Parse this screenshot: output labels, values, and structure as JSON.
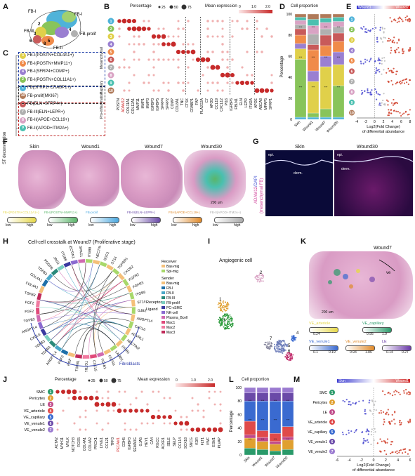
{
  "panels": {
    "A": "A",
    "B": "B",
    "C": "C",
    "D": "D",
    "E": "E",
    "F": "F",
    "G": "G",
    "H": "H",
    "I": "I",
    "J": "J",
    "K": "K",
    "L": "L",
    "M": "M"
  },
  "clusters": [
    "1",
    "2",
    "3",
    "4",
    "5",
    "6",
    "7",
    "8",
    "9",
    "10"
  ],
  "cluster_colors": [
    "#4fb3d9",
    "#88c45a",
    "#e0d04a",
    "#9a7fd1",
    "#f08b4a",
    "#c85a5a",
    "#b0b0b0",
    "#d9a3c4",
    "#4ac0b0",
    "#b07a5a"
  ],
  "panelA": {
    "labels": {
      "fb_i": "FB-I",
      "fb_ii": "FB-II",
      "fb_iii": "FB-III",
      "fb_prolif": "FB-prolif",
      "n2": "2",
      "n3": "3",
      "n4": "4",
      "n5": "5",
      "n6": "6",
      "n8": "8"
    }
  },
  "panelB": {
    "legend_percentage": "Percentage",
    "size_labels": [
      "25",
      "50",
      "75"
    ],
    "legend_mean": "Mean expression",
    "color_ticks": [
      "0",
      "1.0",
      "2.0"
    ],
    "genes": [
      "POSTN",
      "ADAM12",
      "COL11A1",
      "COL12A1",
      "MMP11",
      "MMP1",
      "MMP3",
      "IGFBP3",
      "IGFBP5",
      "SFRP4",
      "SFRP2",
      "COMP",
      "COL8A1",
      "TNC",
      "CTSK",
      "CRABP1",
      "FAP",
      "PLA2G2A",
      "C7",
      "APOD",
      "CCL19",
      "CXCL12",
      "PI16",
      "IGFBP6",
      "FBLN1",
      "ELN",
      "LEPR",
      "ITM2A",
      "APOE",
      "ABCA8",
      "MFAP5",
      "SFRP1"
    ],
    "red_gene_index": 1
  },
  "panelC": {
    "items": [
      {
        "num": "3",
        "label": "FB-I(POSTN+COL4A1+)"
      },
      {
        "num": "5",
        "label": "FB-I(POSTN+MMP11+)"
      },
      {
        "num": "4",
        "label": "FB-I(SFRP4+COMP+)"
      },
      {
        "num": "2",
        "label": "FB-I(POSTN+COL11A1+)"
      },
      {
        "num": "1",
        "label": "FB(SFRP1+CRABP1+)"
      },
      {
        "num": "10",
        "label": "FB-prolif(MKI67)"
      },
      {
        "num": "6",
        "label": "FB(ELN+SFRP4+)"
      },
      {
        "num": "7",
        "label": "FB-III(ELN+LEPR+)"
      },
      {
        "num": "8",
        "label": "FB-II(APOE+CCL19+)"
      },
      {
        "num": "9",
        "label": "FB-II(APOD+ITM2A+)"
      }
    ],
    "groups": [
      "Mesenchymal",
      "Papillary",
      "Pro-inflammation"
    ]
  },
  "panelD": {
    "title": "Cell proportion",
    "ylabel": "Percentage",
    "yticks": [
      "0",
      "20",
      "40",
      "60",
      "80",
      "100"
    ],
    "categories": [
      "Skin",
      "Wound1",
      "Wound7",
      "Wound30"
    ]
  },
  "panelE": {
    "legend_left": "Wound1",
    "legend_right": "Wound7",
    "xticks": [
      "-4",
      "-2",
      "0",
      "2",
      "4",
      "6",
      "8"
    ],
    "xlabel1": "Log2(Fold Change)",
    "xlabel2": "of differential abundance"
  },
  "panelF": {
    "side_label": "ST deconvolution",
    "titles": [
      "Skin",
      "Wound1",
      "Wound7",
      "Wound30"
    ],
    "scale": "200 um",
    "legends": [
      {
        "label": "FB-I(POSTN+COL11A1+)",
        "color": "#e6d84a",
        "low": "low",
        "high": "high"
      },
      {
        "label": "FB-I(POSTN+MMP11+)",
        "color": "#5ab56a",
        "low": "low",
        "high": "high"
      },
      {
        "label": "FB-prolif",
        "color": "#4aa8e0",
        "low": "low",
        "high": "high"
      },
      {
        "label": "FB-III(ELN+LEPR+)",
        "color": "#6a4aa8",
        "low": "low",
        "high": "high"
      },
      {
        "label": "FB-II(APOE+CCL19+)",
        "color": "#e08a2a",
        "low": "low",
        "high": "high"
      },
      {
        "label": "FB-II(APOD+ITM2A+)",
        "color": "#aaaaaa",
        "low": "low",
        "high": "high"
      }
    ]
  },
  "panelG": {
    "titles": [
      "Skin",
      "Wound30"
    ],
    "epi": "epi.",
    "derm": "derm.",
    "side_label_a": "ADAM12",
    "side_label_b": "/DAPI",
    "side_label_c": "(mesenchymal FB)"
  },
  "panelH": {
    "title": "Cell-cell crosstalk at Wound7 (Proliferative stage)",
    "ligands": [
      "TGFB1",
      "CXCL5",
      "TGFB1",
      "TGFB1",
      "HGF",
      "FGF2",
      "ANGPTL4",
      "TGFB3",
      "TGFB3",
      "CXCL6",
      "ANGPTL4",
      "TGFB3",
      "FGF2",
      "FGF2",
      "TGFB3",
      "COL4A1",
      "COL4A1",
      "TGFB3",
      "PDGFB",
      "JAG1",
      "ITGB8",
      "NECTIN1",
      "SPAC1"
    ],
    "receptors": [
      "ITGB8",
      "NECTIN1",
      "SDC1",
      "ST14",
      "TGFBR1",
      "CXCR2",
      "FGFR2",
      "FGFR3",
      "ITGB6",
      "ST14",
      "GJB2",
      "ANGPTL4",
      "CXCL6",
      "ACVRL1",
      "NECTIN2",
      "ITGB1",
      "LAMB1",
      "FGFR1"
    ],
    "legend_receiver": "Receiver",
    "receivers": [
      {
        "label": "Bas-mig",
        "color": "#f4c07a"
      },
      {
        "label": "Spi-mig",
        "color": "#a8d86a"
      }
    ],
    "legend_sender": "Sender",
    "senders": [
      {
        "label": "Bas-mig",
        "color": "#f4c07a"
      },
      {
        "label": "FB-I",
        "color": "#1f6fa8"
      },
      {
        "label": "FB-II",
        "color": "#4aa8c8"
      },
      {
        "label": "FB-III",
        "color": "#2a8a7a"
      },
      {
        "label": "FB-prolif",
        "color": "#7acfc0"
      },
      {
        "label": "PC-vSMC",
        "color": "#3a3aa0"
      },
      {
        "label": "NK-cell",
        "color": "#8a6ad0"
      },
      {
        "label": "Plasma_Bcell",
        "color": "#d06ab0"
      },
      {
        "label": "Mac1",
        "color": "#e04a7a"
      },
      {
        "label": "Mac2",
        "color": "#f07aa0"
      },
      {
        "label": "Mac3",
        "color": "#c02a5a"
      }
    ],
    "receptor_label": "Receptor",
    "ligand_label": "Ligand",
    "fibro_label": "Fibroblasts"
  },
  "panelI": {
    "title": "Angiogenic cell",
    "labels": [
      "1",
      "2",
      "3",
      "4",
      "5",
      "6",
      "7"
    ]
  },
  "panelK": {
    "title": "Wound7",
    "scale": "200 um",
    "ve": "ve",
    "legends": [
      {
        "label": "VE_arteriole",
        "color": "#e6d84a",
        "min": "0.24",
        "max": ""
      },
      {
        "label": "VE_capillary",
        "color": "#2a9a6a",
        "min": "0.95",
        "max": "1.9"
      },
      {
        "label": "VE_venule1",
        "color": "#3a6ad0",
        "min": "0.1",
        "max": "0.19"
      },
      {
        "label": "VE_venule2",
        "color": "#e08a2a",
        "min": "0.93",
        "max": "1.86"
      },
      {
        "label": "LE",
        "color": "#6a3aa8",
        "min": "0.14",
        "max": "0.27"
      }
    ]
  },
  "panelJ": {
    "legend_percentage": "Percentage",
    "size_labels": [
      "25",
      "50",
      "75"
    ],
    "legend_mean": "Mean expression",
    "color_ticks": [
      "0",
      "1.0",
      "2.0"
    ],
    "rows": [
      {
        "num": "1",
        "label": "SMC",
        "color": "#2a9a6a"
      },
      {
        "num": "2",
        "label": "Pericytes",
        "color": "#e0a030"
      },
      {
        "num": "3",
        "label": "LE",
        "color": "#c04a8a"
      },
      {
        "num": "4",
        "label": "VE_arteriole",
        "color": "#e04a4a"
      },
      {
        "num": "5",
        "label": "VE_capillary",
        "color": "#3a6ad0"
      },
      {
        "num": "6",
        "label": "VE_venule1",
        "color": "#6a4aa8"
      },
      {
        "num": "7",
        "label": "VE_venule2",
        "color": "#9a7ad0"
      }
    ],
    "genes": [
      "ACTA2",
      "MYH11",
      "MYLK",
      "NOTCH3",
      "RGS5",
      "COL4A1",
      "COL4A2",
      "PROX1",
      "LYVE1",
      "CCL21",
      "TFF3",
      "PECAM1",
      "CDH5",
      "IGFBP3",
      "SEMA3G",
      "GJA5",
      "HEY1",
      "CA4",
      "RGCC",
      "ACKR1",
      "SELE",
      "SELP",
      "CCL14",
      "SOX18",
      "SNCG",
      "KDR",
      "FLT1",
      "VWF",
      "ESM1",
      "PLVAP"
    ],
    "red_gene_index": 11
  },
  "panelL": {
    "title": "Cell proportion",
    "ylabel": "Percentage",
    "yticks": [
      "0",
      "20",
      "40",
      "60",
      "80",
      "100"
    ],
    "categories": [
      "Skin",
      "Wound1",
      "Wound7",
      "Wound30"
    ]
  },
  "panelM": {
    "legend_left": "Skin",
    "legend_right": "Wound1",
    "rows": [
      "SMC",
      "Pericytes",
      "LE",
      "VE_arteriole",
      "VE_capillary",
      "VE_venule1",
      "VE_venule2"
    ],
    "nums": [
      "1",
      "2",
      "3",
      "4",
      "5",
      "6",
      "7"
    ],
    "xticks": [
      "-6",
      "-4",
      "-2",
      "0",
      "2",
      "4",
      "6"
    ],
    "xlabel1": "Log2(Fold Change)",
    "xlabel2": "of differential abundance"
  }
}
